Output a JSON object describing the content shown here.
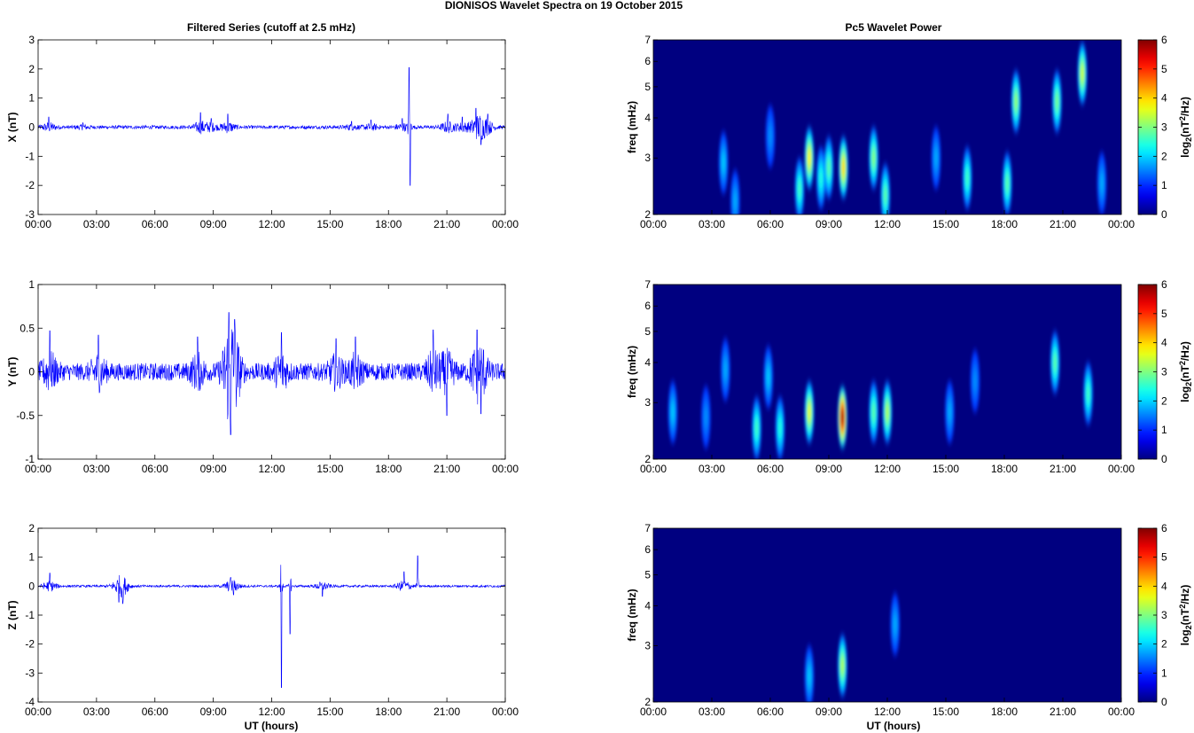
{
  "figure": {
    "title": "DIONISOS Wavelet Spectra on 19 October   2015",
    "left_title": "Filtered Series (cutoff at 2.5 mHz)",
    "right_title": "Pc5 Wavelet Power",
    "xlabel": "UT (hours)",
    "spec_ylabel": "freq (mHz)",
    "cbar_label_main": "log",
    "cbar_label_sub": "2",
    "cbar_label_paren": "(nT",
    "cbar_label_sup": "2",
    "cbar_label_tail": "/Hz)"
  },
  "colors": {
    "trace": "#0000ff",
    "background_low": "#00008f",
    "colormap": "jet"
  },
  "chart_data": [
    {
      "type": "line",
      "component": "X",
      "ylabel": "X (nT)",
      "xlim": [
        0,
        24
      ],
      "ylim": [
        -3,
        3
      ],
      "yticks": [
        -3,
        -2,
        -1,
        0,
        1,
        2,
        3
      ],
      "xtick_labels": [
        "00:00",
        "03:00",
        "06:00",
        "09:00",
        "12:00",
        "15:00",
        "18:00",
        "21:00",
        "00:00"
      ],
      "baseline_noise": 0.06,
      "events": [
        {
          "t": 0.55,
          "amp": 0.35
        },
        {
          "t": 2.3,
          "amp": 0.15
        },
        {
          "t": 8.35,
          "amp": 0.5
        },
        {
          "t": 8.9,
          "amp": 0.3
        },
        {
          "t": 9.75,
          "amp": 0.45
        },
        {
          "t": 16.1,
          "amp": 0.2
        },
        {
          "t": 17.1,
          "amp": 0.25
        },
        {
          "t": 18.7,
          "amp": 0.3
        },
        {
          "t": 19.05,
          "amp": 2.05
        },
        {
          "t": 19.12,
          "amp": -2.0
        },
        {
          "t": 21.05,
          "amp": 0.45
        },
        {
          "t": 21.8,
          "amp": 0.35
        },
        {
          "t": 22.5,
          "amp": 0.65
        },
        {
          "t": 22.75,
          "amp": -0.6
        },
        {
          "t": 23.1,
          "amp": 0.45
        }
      ]
    },
    {
      "type": "line",
      "component": "Y",
      "ylabel": "Y (nT)",
      "xlim": [
        0,
        24
      ],
      "ylim": [
        -1,
        1
      ],
      "yticks": [
        -1,
        -0.5,
        0,
        0.5,
        1
      ],
      "xtick_labels": [
        "00:00",
        "03:00",
        "06:00",
        "09:00",
        "12:00",
        "15:00",
        "18:00",
        "21:00",
        "00:00"
      ],
      "baseline_noise": 0.1,
      "events": [
        {
          "t": 0.6,
          "amp": 0.47
        },
        {
          "t": 3.1,
          "amp": 0.42
        },
        {
          "t": 8.2,
          "amp": 0.4
        },
        {
          "t": 9.8,
          "amp": 0.68
        },
        {
          "t": 9.9,
          "amp": -0.72
        },
        {
          "t": 10.1,
          "amp": 0.6
        },
        {
          "t": 12.5,
          "amp": 0.45
        },
        {
          "t": 15.3,
          "amp": 0.38
        },
        {
          "t": 16.3,
          "amp": 0.4
        },
        {
          "t": 20.3,
          "amp": 0.48
        },
        {
          "t": 21.0,
          "amp": -0.5
        },
        {
          "t": 22.55,
          "amp": 0.48
        },
        {
          "t": 22.75,
          "amp": -0.48
        }
      ]
    },
    {
      "type": "line",
      "component": "Z",
      "ylabel": "Z (nT)",
      "xlim": [
        0,
        24
      ],
      "ylim": [
        -4,
        2
      ],
      "yticks": [
        -4,
        -3,
        -2,
        -1,
        0,
        1,
        2
      ],
      "xtick_labels": [
        "00:00",
        "03:00",
        "06:00",
        "09:00",
        "12:00",
        "15:00",
        "18:00",
        "21:00",
        "00:00"
      ],
      "baseline_noise": 0.04,
      "events": [
        {
          "t": 0.6,
          "amp": 0.45
        },
        {
          "t": 4.15,
          "amp": -0.55
        },
        {
          "t": 4.35,
          "amp": -0.6
        },
        {
          "t": 9.9,
          "amp": 0.3
        },
        {
          "t": 10.05,
          "amp": -0.3
        },
        {
          "t": 12.5,
          "amp": -3.5
        },
        {
          "t": 12.95,
          "amp": -1.65
        },
        {
          "t": 14.6,
          "amp": -0.35
        },
        {
          "t": 18.8,
          "amp": 0.5
        },
        {
          "t": 19.5,
          "amp": 1.05
        }
      ]
    },
    {
      "type": "heatmap",
      "component": "X",
      "ylabel": "freq (mHz)",
      "xlim": [
        0,
        24
      ],
      "ylim": [
        2,
        7
      ],
      "yscale": "log",
      "yticks": [
        2,
        3,
        4,
        5,
        6,
        7
      ],
      "xtick_labels": [
        "00:00",
        "03:00",
        "06:00",
        "09:00",
        "12:00",
        "15:00",
        "18:00",
        "21:00",
        "00:00"
      ],
      "colorbar": {
        "min": 0,
        "max": 6,
        "ticks": [
          0,
          1,
          2,
          3,
          4,
          5,
          6
        ]
      },
      "features": [
        {
          "t": 3.6,
          "f": 2.9,
          "value": 1.2
        },
        {
          "t": 4.2,
          "f": 2.2,
          "value": 1.0
        },
        {
          "t": 6.0,
          "f": 3.5,
          "value": 0.8
        },
        {
          "t": 7.5,
          "f": 2.4,
          "value": 2.0
        },
        {
          "t": 8.0,
          "f": 3.0,
          "value": 3.4
        },
        {
          "t": 8.6,
          "f": 2.6,
          "value": 1.8
        },
        {
          "t": 9.0,
          "f": 2.8,
          "value": 2.2
        },
        {
          "t": 9.75,
          "f": 2.8,
          "value": 3.6
        },
        {
          "t": 11.3,
          "f": 3.0,
          "value": 2.5
        },
        {
          "t": 11.9,
          "f": 2.3,
          "value": 2.2
        },
        {
          "t": 14.5,
          "f": 3.0,
          "value": 1.0
        },
        {
          "t": 16.1,
          "f": 2.6,
          "value": 2.0
        },
        {
          "t": 18.15,
          "f": 2.5,
          "value": 2.2
        },
        {
          "t": 18.6,
          "f": 4.5,
          "value": 2.6
        },
        {
          "t": 20.7,
          "f": 4.5,
          "value": 2.4
        },
        {
          "t": 22.0,
          "f": 5.5,
          "value": 3.0
        },
        {
          "t": 23.0,
          "f": 2.5,
          "value": 1.0
        }
      ]
    },
    {
      "type": "heatmap",
      "component": "Y",
      "ylabel": "freq (mHz)",
      "xlim": [
        0,
        24
      ],
      "ylim": [
        2,
        7
      ],
      "yscale": "log",
      "yticks": [
        2,
        3,
        4,
        5,
        6,
        7
      ],
      "xtick_labels": [
        "00:00",
        "03:00",
        "06:00",
        "09:00",
        "12:00",
        "15:00",
        "18:00",
        "21:00",
        "00:00"
      ],
      "colorbar": {
        "min": 0,
        "max": 6,
        "ticks": [
          0,
          1,
          2,
          3,
          4,
          5,
          6
        ]
      },
      "features": [
        {
          "t": 1.0,
          "f": 2.8,
          "value": 1.2
        },
        {
          "t": 2.7,
          "f": 2.7,
          "value": 0.8
        },
        {
          "t": 3.7,
          "f": 3.8,
          "value": 1.0
        },
        {
          "t": 5.3,
          "f": 2.5,
          "value": 2.0
        },
        {
          "t": 5.9,
          "f": 3.6,
          "value": 1.2
        },
        {
          "t": 6.5,
          "f": 2.5,
          "value": 1.8
        },
        {
          "t": 8.0,
          "f": 2.8,
          "value": 3.2
        },
        {
          "t": 9.7,
          "f": 2.7,
          "value": 5.7
        },
        {
          "t": 11.3,
          "f": 2.8,
          "value": 2.2
        },
        {
          "t": 12.0,
          "f": 2.8,
          "value": 2.8
        },
        {
          "t": 15.2,
          "f": 2.8,
          "value": 1.0
        },
        {
          "t": 16.5,
          "f": 3.5,
          "value": 0.8
        },
        {
          "t": 20.6,
          "f": 4.0,
          "value": 2.2
        },
        {
          "t": 22.3,
          "f": 3.2,
          "value": 2.0
        }
      ]
    },
    {
      "type": "heatmap",
      "component": "Z",
      "ylabel": "freq (mHz)",
      "xlim": [
        0,
        24
      ],
      "ylim": [
        2,
        7
      ],
      "yscale": "log",
      "yticks": [
        2,
        3,
        4,
        5,
        6,
        7
      ],
      "xtick_labels": [
        "00:00",
        "03:00",
        "06:00",
        "09:00",
        "12:00",
        "15:00",
        "18:00",
        "21:00",
        "00:00"
      ],
      "colorbar": {
        "min": 0,
        "max": 6,
        "ticks": [
          0,
          1,
          2,
          3,
          4,
          5,
          6
        ]
      },
      "features": [
        {
          "t": 8.0,
          "f": 2.4,
          "value": 1.2
        },
        {
          "t": 9.7,
          "f": 2.6,
          "value": 2.8
        },
        {
          "t": 12.4,
          "f": 3.5,
          "value": 1.0
        }
      ]
    }
  ]
}
